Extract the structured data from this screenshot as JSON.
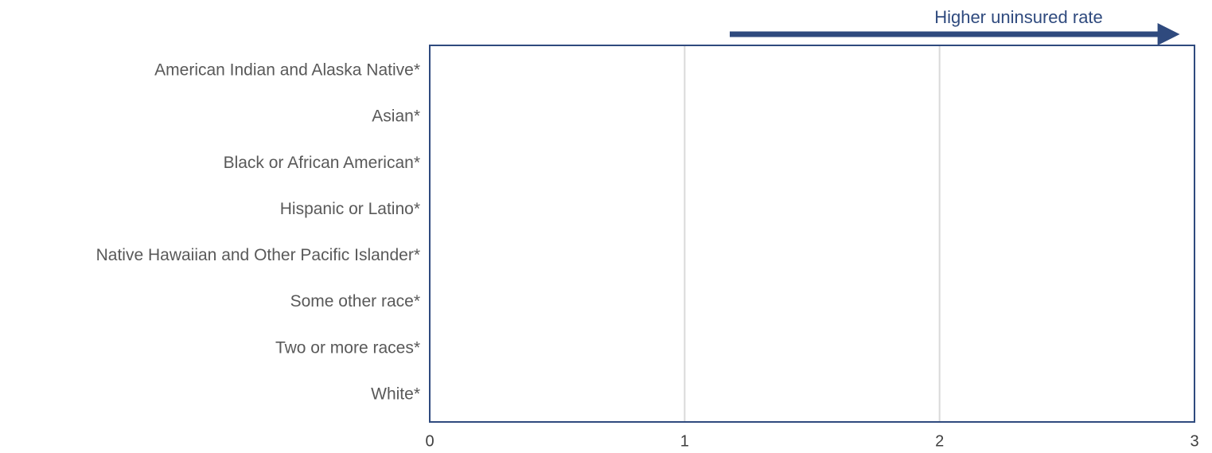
{
  "chart_data": {
    "type": "bar",
    "orientation": "horizontal",
    "annotation": "Higher uninsured rate",
    "categories": [
      "American Indian and Alaska Native*",
      "Asian*",
      "Black or African American*",
      "Hispanic or Latino*",
      "Native Hawaiian and Other Pacific Islander*",
      "Some other race*",
      "Two or more races*",
      "White*"
    ],
    "xlim": [
      0,
      3
    ],
    "xticks": [
      0,
      1,
      2,
      3
    ],
    "grid": true
  }
}
